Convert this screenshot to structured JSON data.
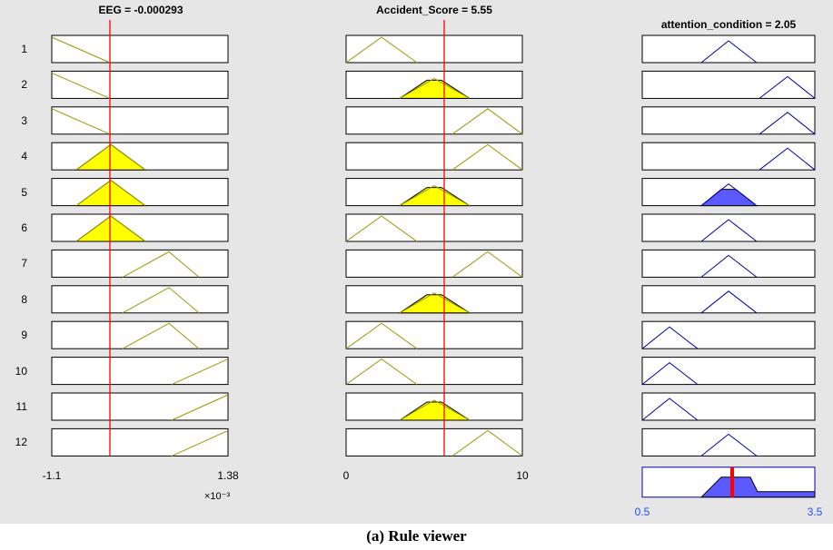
{
  "window": {
    "caption": "(a) Rule viewer"
  },
  "columns": [
    {
      "title": "EEG = -0.000293",
      "axis_min": "-1.1",
      "axis_max": "1.38",
      "axis_multiplier": "×10⁻³",
      "input_line": true
    },
    {
      "title": "Accident_Score = 5.55",
      "axis_min": "0",
      "axis_max": "10",
      "input_line": true
    },
    {
      "title": "attention_condition = 2.05",
      "axis_min": "0.5",
      "axis_max": "3.5",
      "output": true
    }
  ],
  "rules": [
    "1",
    "2",
    "3",
    "4",
    "5",
    "6",
    "7",
    "8",
    "9",
    "10",
    "11",
    "12"
  ],
  "colors": {
    "background": "#e6e6e6",
    "input_fill": "#ffff00",
    "input_outline": "#999900",
    "output_fill": "#5a5aff",
    "output_outline": "#0000aa",
    "input_marker": "#ff0000",
    "axis_output_labels": "#1f4fff"
  },
  "membership": {
    "EEG": [
      "z-shape",
      "z-shape",
      "z-shape",
      "tri-active",
      "tri-active",
      "tri-active",
      "tri-high",
      "tri-high",
      "tri-high",
      "ramp-up",
      "ramp-up",
      "ramp-up"
    ],
    "Accident_Score": [
      "tri-low",
      "tri-mid-active",
      "tri-high",
      "tri-high",
      "tri-mid-active",
      "tri-low",
      "tri-high",
      "tri-mid-active",
      "tri-low",
      "tri-low",
      "tri-mid-active",
      "tri-high"
    ],
    "attention_condition": [
      "mid",
      "high",
      "high",
      "high",
      "mid-active",
      "mid",
      "mid",
      "mid",
      "low",
      "low",
      "low",
      "mid"
    ]
  }
}
